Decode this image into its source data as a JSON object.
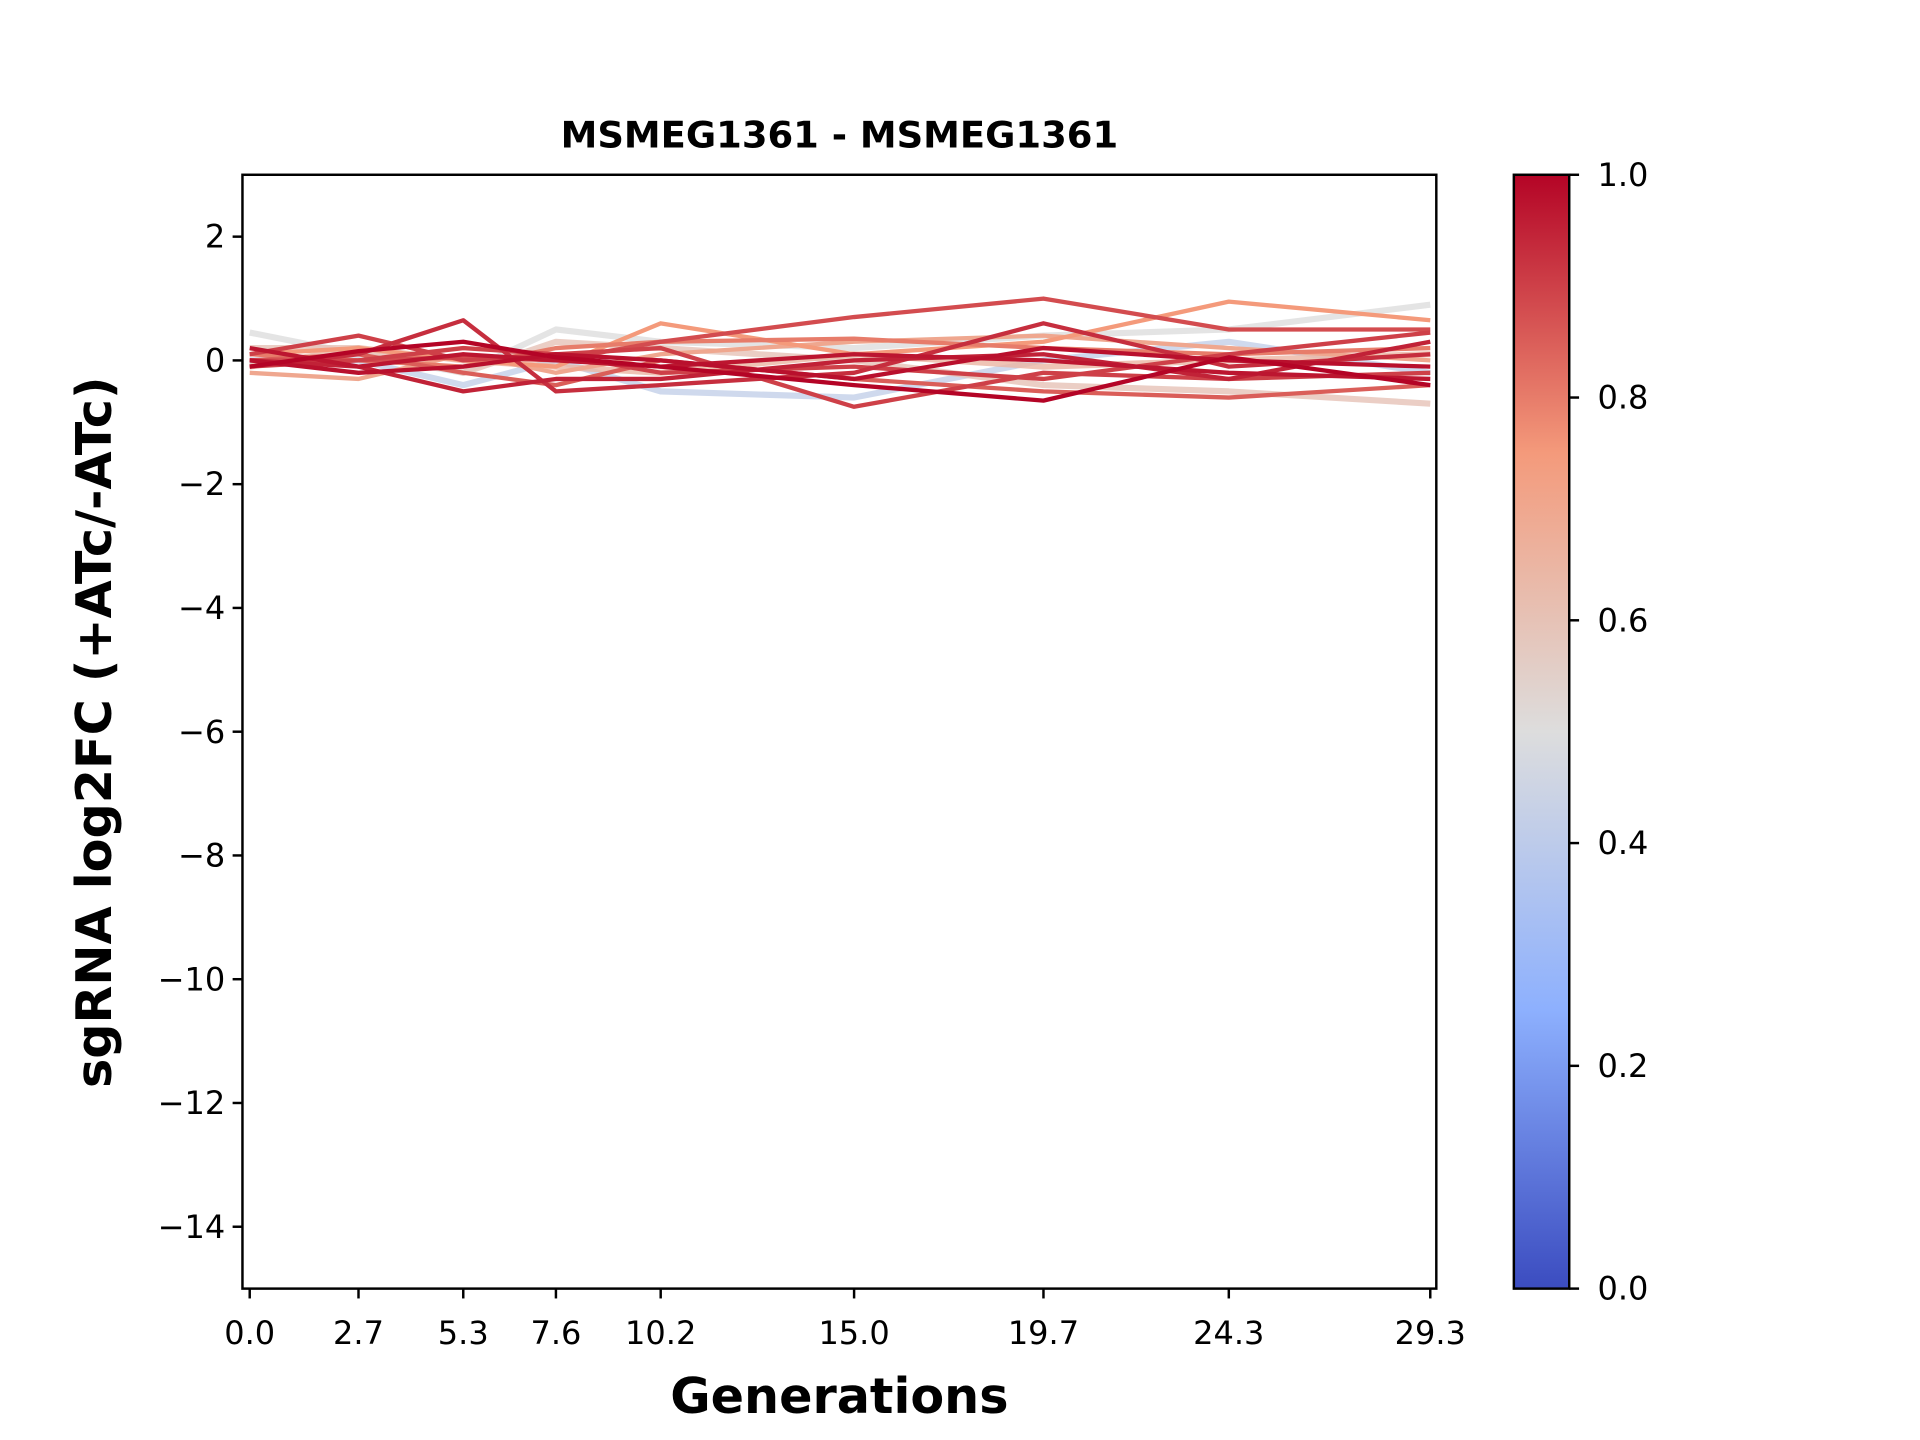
{
  "chart_data": {
    "type": "line",
    "title": "MSMEG1361 - MSMEG1361",
    "xlabel": "Generations",
    "ylabel": "sgRNA log2FC (+ATc/-ATc)",
    "x": [
      0.0,
      2.7,
      5.3,
      7.6,
      10.2,
      15.0,
      19.7,
      24.3,
      29.3
    ],
    "x_tick_labels": [
      "0.0",
      "2.7",
      "5.3",
      "7.6",
      "10.2",
      "15.0",
      "19.7",
      "24.3",
      "29.3"
    ],
    "xlim": [
      -0.18,
      29.45
    ],
    "ylim": [
      -15,
      3
    ],
    "y_ticks": [
      2,
      0,
      -2,
      -4,
      -6,
      -8,
      -10,
      -12,
      -14
    ],
    "y_tick_labels": [
      "2",
      "0",
      "−2",
      "−4",
      "−6",
      "−8",
      "−10",
      "−12",
      "−14"
    ],
    "grid": false,
    "colormap": "coolwarm",
    "colormap_stops": [
      {
        "v": 0.0,
        "color": "#3b4cc0"
      },
      {
        "v": 0.25,
        "color": "#8db0fe"
      },
      {
        "v": 0.5,
        "color": "#dddddd"
      },
      {
        "v": 0.75,
        "color": "#f49a7b"
      },
      {
        "v": 1.0,
        "color": "#b40426"
      }
    ],
    "colorbar": {
      "range": [
        0.0,
        1.0
      ],
      "ticks": [
        0.0,
        0.2,
        0.4,
        0.6,
        0.8,
        1.0
      ],
      "tick_labels": [
        "0.0",
        "0.2",
        "0.4",
        "0.6",
        "0.8",
        "1.0"
      ]
    },
    "series": [
      {
        "c": 0.5,
        "values": [
          0.45,
          0.1,
          -0.2,
          0.5,
          0.3,
          0.2,
          0.4,
          0.5,
          0.9
        ]
      },
      {
        "c": 0.42,
        "values": [
          0.0,
          0.0,
          -0.4,
          0.0,
          -0.5,
          -0.6,
          0.0,
          0.3,
          -0.2
        ]
      },
      {
        "c": 0.6,
        "values": [
          0.2,
          0.2,
          -0.2,
          0.3,
          0.2,
          0.0,
          -0.4,
          -0.5,
          -0.7
        ]
      },
      {
        "c": 0.65,
        "values": [
          -0.1,
          0.2,
          0.0,
          -0.1,
          -0.2,
          0.1,
          -0.1,
          0.0,
          0.1
        ]
      },
      {
        "c": 0.7,
        "values": [
          -0.2,
          -0.3,
          0.1,
          -0.2,
          0.1,
          0.3,
          0.4,
          0.2,
          0.0
        ]
      },
      {
        "c": 0.75,
        "values": [
          0.1,
          0.2,
          0.0,
          -0.1,
          0.6,
          0.1,
          0.3,
          0.95,
          0.65
        ]
      },
      {
        "c": 0.8,
        "values": [
          0.1,
          0.0,
          -0.1,
          0.2,
          0.3,
          0.35,
          0.2,
          0.1,
          0.2
        ]
      },
      {
        "c": 0.85,
        "values": [
          0.0,
          0.1,
          -0.2,
          -0.4,
          0.0,
          -0.3,
          -0.5,
          -0.6,
          -0.4
        ]
      },
      {
        "c": 0.88,
        "values": [
          0.0,
          0.0,
          0.05,
          0.0,
          0.3,
          0.7,
          1.0,
          0.5,
          0.5
        ]
      },
      {
        "c": 0.9,
        "values": [
          0.1,
          0.4,
          0.0,
          0.1,
          0.2,
          -0.75,
          -0.2,
          -0.3,
          -0.2
        ]
      },
      {
        "c": 0.9,
        "values": [
          -0.1,
          0.0,
          0.2,
          0.1,
          -0.2,
          -0.1,
          -0.3,
          0.1,
          0.45
        ]
      },
      {
        "c": 0.93,
        "values": [
          -0.1,
          0.1,
          0.65,
          -0.5,
          -0.4,
          -0.2,
          0.6,
          -0.1,
          0.1
        ]
      },
      {
        "c": 0.95,
        "values": [
          0.0,
          -0.1,
          -0.5,
          -0.3,
          -0.3,
          0.0,
          0.1,
          -0.3,
          0.3
        ]
      },
      {
        "c": 0.97,
        "values": [
          0.2,
          -0.1,
          0.1,
          0.0,
          -0.1,
          0.1,
          0.0,
          -0.2,
          -0.3
        ]
      },
      {
        "c": 0.98,
        "values": [
          0.0,
          -0.2,
          -0.1,
          0.1,
          0.0,
          -0.3,
          0.2,
          0.0,
          -0.1
        ]
      },
      {
        "c": 1.0,
        "values": [
          -0.1,
          0.15,
          0.3,
          0.05,
          -0.1,
          -0.4,
          -0.65,
          0.05,
          -0.4
        ]
      }
    ]
  }
}
